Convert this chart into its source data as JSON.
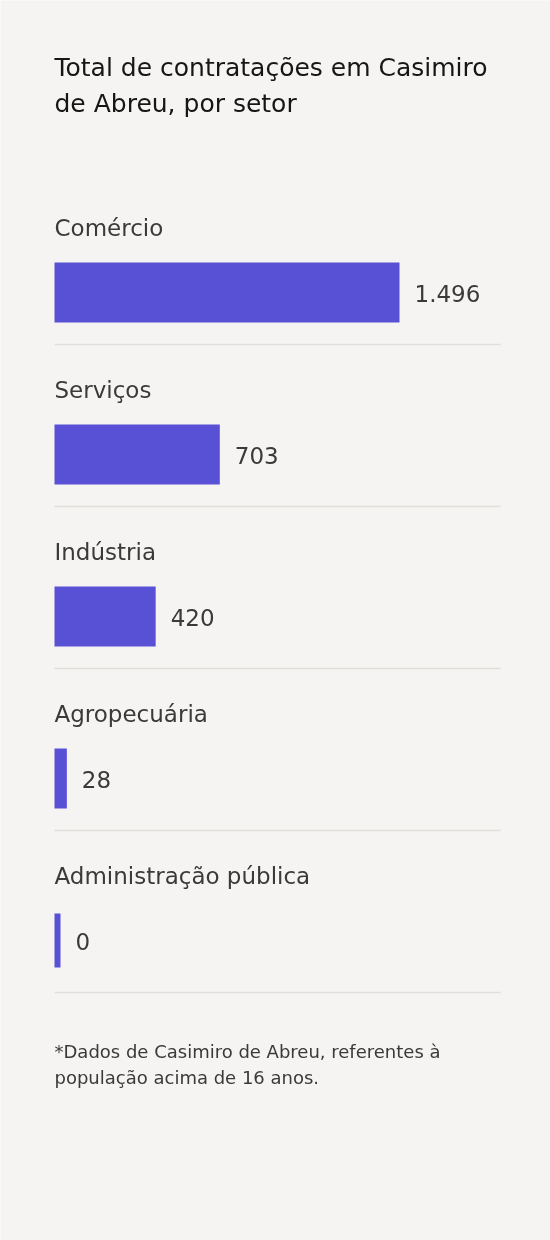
{
  "chart_data": {
    "type": "bar",
    "orientation": "horizontal",
    "title": "Total de contratações em Casimiro de Abreu, por setor",
    "categories": [
      "Comércio",
      "Serviços",
      "Indústria",
      "Agropecuária",
      "Administração pública"
    ],
    "values": [
      1496,
      703,
      420,
      28,
      0
    ],
    "value_labels": [
      "1.496",
      "703",
      "420",
      "28",
      "0"
    ],
    "color": "#5851d6",
    "grid": "y",
    "annotations": [
      "*Dados de Casimiro de Abreu, referentes à população acima de 16 anos."
    ]
  }
}
